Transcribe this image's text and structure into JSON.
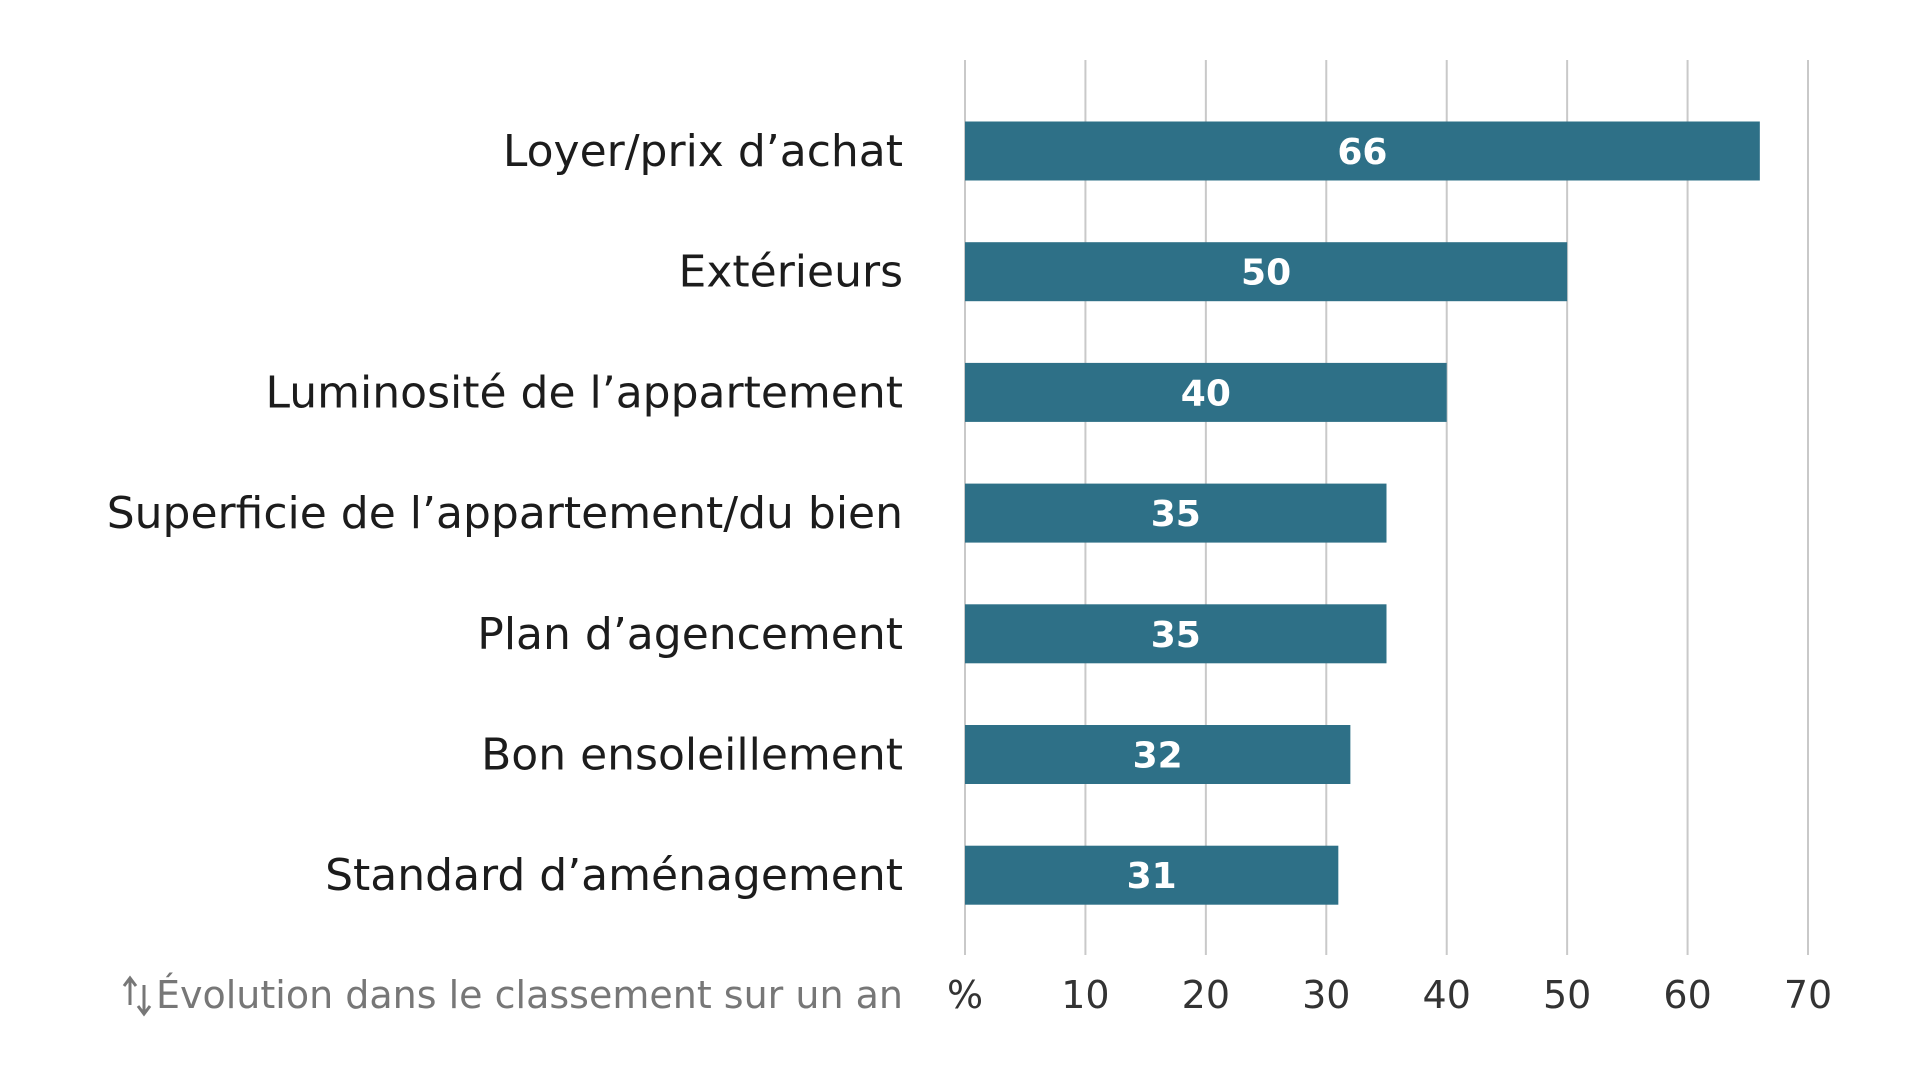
{
  "chart_data": {
    "type": "bar",
    "orientation": "horizontal",
    "categories": [
      "Loyer/prix d’achat",
      "Extérieurs",
      "Luminosité de l’appartement",
      "Superficie de l’appartement/du bien",
      "Plan d’agencement",
      "Bon ensoleillement",
      "Standard d’aménagement"
    ],
    "values": [
      66,
      50,
      40,
      35,
      35,
      32,
      31
    ],
    "value_labels": [
      "66",
      "50",
      "40",
      "35",
      "35",
      "32",
      "31"
    ],
    "xlim": [
      0,
      70
    ],
    "x_ticks": [
      0,
      10,
      20,
      30,
      40,
      50,
      60,
      70
    ],
    "x_tick_labels": [
      "%",
      "10",
      "20",
      "30",
      "40",
      "50",
      "60",
      "70"
    ],
    "grid": "vertical",
    "bar_color": "#2e7087",
    "gridline_color": "#c9c9c9",
    "footnote": "Évolution dans le classement sur un an",
    "footnote_icon": "sort-arrows-icon"
  }
}
